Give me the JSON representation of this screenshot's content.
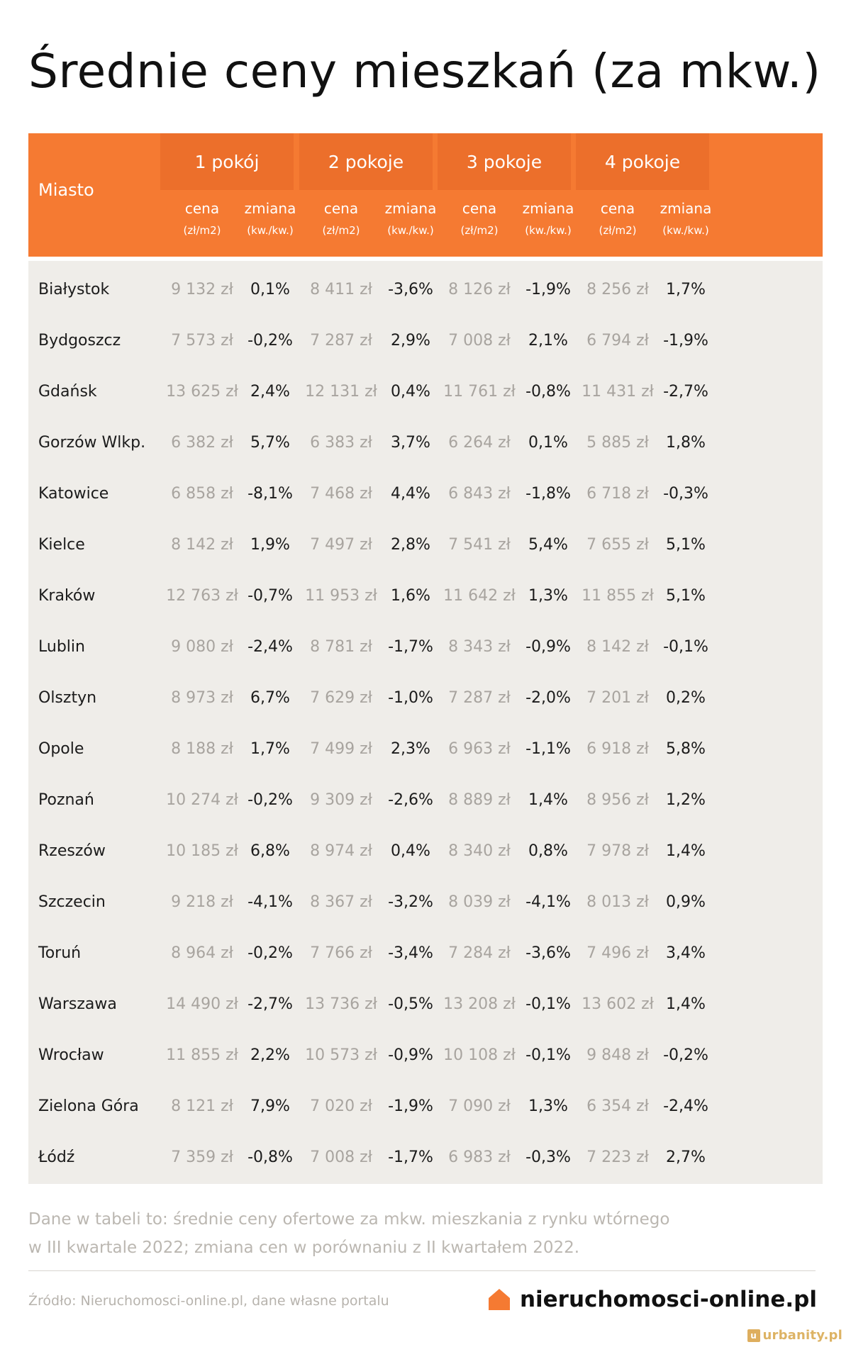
{
  "title": "Średnie ceny mieszkań (za mkw.)",
  "note_lines": [
    "Dane w tabeli to: średnie ceny ofertowe za mkw. mieszkania z rynku wtórnego",
    "w III kwartale 2022; zmiana cen w porównaniu z II kwartałem 2022."
  ],
  "footer": {
    "source": "Źródło: Nieruchomosci-online.pl, dane własne portalu",
    "brand": "nieruchomosci-online.pl",
    "brand_icon": "house-icon",
    "watermark": "urbanity.pl"
  },
  "colors": {
    "orange": "#f57a32",
    "orange_dark": "#ec6f2b",
    "body_bg": "#efede9"
  },
  "chart_data": {
    "type": "table",
    "columns": [
      "Miasto",
      "1 pokój cena (zł/m2)",
      "1 pokój zmiana (kw./kw.)",
      "2 pokoje cena (zł/m2)",
      "2 pokoje zmiana (kw./kw.)",
      "3 pokoje cena (zł/m2)",
      "3 pokoje zmiana (kw./kw.)",
      "4 pokoje cena (zł/m2)",
      "4 pokoje zmiana (kw./kw.)"
    ],
    "header": {
      "city_label": "Miasto",
      "groups": [
        "1 pokój",
        "2 pokoje",
        "3 pokoje",
        "4 pokoje"
      ],
      "price_label": "cena",
      "price_unit": "(zł/m2)",
      "change_label": "zmiana",
      "change_unit": "(kw./kw.)"
    },
    "rows": [
      [
        "Białystok",
        "9 132 zł",
        "0,1%",
        "8 411 zł",
        "-3,6%",
        "8 126 zł",
        "-1,9%",
        "8 256 zł",
        "1,7%"
      ],
      [
        "Bydgoszcz",
        "7 573 zł",
        "-0,2%",
        "7 287 zł",
        "2,9%",
        "7 008 zł",
        "2,1%",
        "6 794 zł",
        "-1,9%"
      ],
      [
        "Gdańsk",
        "13 625 zł",
        "2,4%",
        "12 131 zł",
        "0,4%",
        "11 761 zł",
        "-0,8%",
        "11 431 zł",
        "-2,7%"
      ],
      [
        "Gorzów Wlkp.",
        "6 382 zł",
        "5,7%",
        "6 383 zł",
        "3,7%",
        "6 264 zł",
        "0,1%",
        "5 885 zł",
        "1,8%"
      ],
      [
        "Katowice",
        "6 858 zł",
        "-8,1%",
        "7 468 zł",
        "4,4%",
        "6 843 zł",
        "-1,8%",
        "6 718 zł",
        "-0,3%"
      ],
      [
        "Kielce",
        "8 142 zł",
        "1,9%",
        "7 497 zł",
        "2,8%",
        "7 541 zł",
        "5,4%",
        "7 655 zł",
        "5,1%"
      ],
      [
        "Kraków",
        "12 763 zł",
        "-0,7%",
        "11 953 zł",
        "1,6%",
        "11 642 zł",
        "1,3%",
        "11 855 zł",
        "5,1%"
      ],
      [
        "Lublin",
        "9 080 zł",
        "-2,4%",
        "8 781 zł",
        "-1,7%",
        "8 343 zł",
        "-0,9%",
        "8 142 zł",
        "-0,1%"
      ],
      [
        "Olsztyn",
        "8 973 zł",
        "6,7%",
        "7 629 zł",
        "-1,0%",
        "7 287 zł",
        "-2,0%",
        "7 201 zł",
        "0,2%"
      ],
      [
        "Opole",
        "8 188 zł",
        "1,7%",
        "7 499 zł",
        "2,3%",
        "6 963 zł",
        "-1,1%",
        "6 918 zł",
        "5,8%"
      ],
      [
        "Poznań",
        "10 274 zł",
        "-0,2%",
        "9 309 zł",
        "-2,6%",
        "8 889 zł",
        "1,4%",
        "8 956 zł",
        "1,2%"
      ],
      [
        "Rzeszów",
        "10 185 zł",
        "6,8%",
        "8 974 zł",
        "0,4%",
        "8 340 zł",
        "0,8%",
        "7 978 zł",
        "1,4%"
      ],
      [
        "Szczecin",
        "9 218 zł",
        "-4,1%",
        "8 367 zł",
        "-3,2%",
        "8 039 zł",
        "-4,1%",
        "8 013 zł",
        "0,9%"
      ],
      [
        "Toruń",
        "8 964 zł",
        "-0,2%",
        "7 766 zł",
        "-3,4%",
        "7 284 zł",
        "-3,6%",
        "7 496 zł",
        "3,4%"
      ],
      [
        "Warszawa",
        "14 490 zł",
        "-2,7%",
        "13 736 zł",
        "-0,5%",
        "13 208 zł",
        "-0,1%",
        "13 602 zł",
        "1,4%"
      ],
      [
        "Wrocław",
        "11 855 zł",
        "2,2%",
        "10 573 zł",
        "-0,9%",
        "10 108 zł",
        "-0,1%",
        "9 848 zł",
        "-0,2%"
      ],
      [
        "Zielona Góra",
        "8 121 zł",
        "7,9%",
        "7 020 zł",
        "-1,9%",
        "7 090 zł",
        "1,3%",
        "6 354 zł",
        "-2,4%"
      ],
      [
        "Łódź",
        "7 359 zł",
        "-0,8%",
        "7 008 zł",
        "-1,7%",
        "6 983 zł",
        "-0,3%",
        "7 223 zł",
        "2,7%"
      ]
    ]
  }
}
